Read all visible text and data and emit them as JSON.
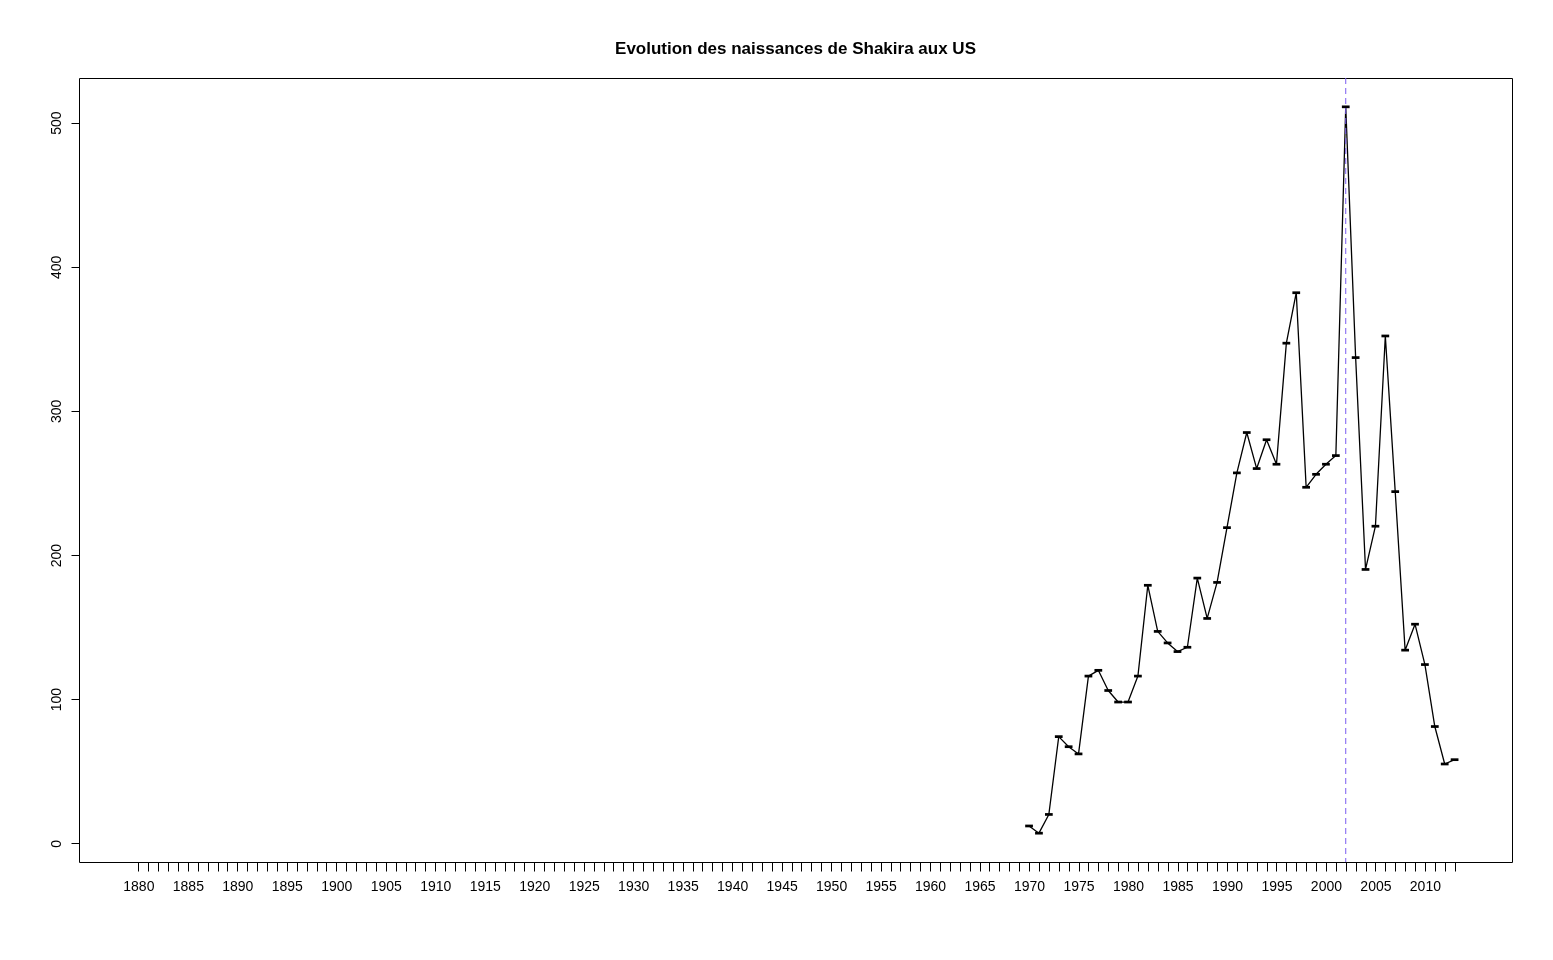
{
  "chart_data": {
    "type": "line",
    "title": "Evolution des naissances de Shakira aux US",
    "x": [
      1970,
      1971,
      1972,
      1973,
      1974,
      1975,
      1976,
      1977,
      1978,
      1979,
      1980,
      1981,
      1982,
      1983,
      1984,
      1985,
      1986,
      1987,
      1988,
      1989,
      1990,
      1991,
      1992,
      1993,
      1994,
      1995,
      1996,
      1997,
      1998,
      1999,
      2000,
      2001,
      2002,
      2003,
      2004,
      2005,
      2006,
      2007,
      2008,
      2009,
      2010,
      2011,
      2012,
      2013
    ],
    "series": [
      {
        "color": "#000000",
        "values": [
          12,
          7,
          20,
          74,
          67,
          62,
          116,
          120,
          106,
          98,
          98,
          116,
          179,
          147,
          139,
          133,
          136,
          184,
          156,
          181,
          219,
          257,
          285,
          260,
          280,
          263,
          347,
          382,
          247,
          256,
          263,
          269,
          511,
          337,
          190,
          220,
          352,
          244,
          134,
          152,
          124,
          81,
          55,
          58
        ]
      }
    ],
    "marker": "square",
    "line_style": "solid",
    "xlim": [
      1874,
      2018.8
    ],
    "ylim": [
      -13,
      531
    ],
    "yticks": [
      0,
      100,
      200,
      300,
      400,
      500
    ],
    "xticks": [
      1880,
      {
        "value": 1881,
        "label": null
      },
      {
        "value": 1882,
        "label": null
      },
      {
        "value": 1883,
        "label": null
      },
      {
        "value": 1884,
        "label": null
      },
      1885,
      {
        "value": 1886,
        "label": null
      },
      {
        "value": 1887,
        "label": null
      },
      {
        "value": 1888,
        "label": null
      },
      {
        "value": 1889,
        "label": null
      },
      1890,
      {
        "value": 1891,
        "label": null
      },
      {
        "value": 1892,
        "label": null
      },
      {
        "value": 1893,
        "label": null
      },
      {
        "value": 1894,
        "label": null
      },
      1895,
      {
        "value": 1896,
        "label": null
      },
      {
        "value": 1897,
        "label": null
      },
      {
        "value": 1898,
        "label": null
      },
      {
        "value": 1899,
        "label": null
      },
      1900,
      {
        "value": 1901,
        "label": null
      },
      {
        "value": 1902,
        "label": null
      },
      {
        "value": 1903,
        "label": null
      },
      {
        "value": 1904,
        "label": null
      },
      1905,
      {
        "value": 1906,
        "label": null
      },
      {
        "value": 1907,
        "label": null
      },
      {
        "value": 1908,
        "label": null
      },
      {
        "value": 1909,
        "label": null
      },
      1910,
      {
        "value": 1911,
        "label": null
      },
      {
        "value": 1912,
        "label": null
      },
      {
        "value": 1913,
        "label": null
      },
      {
        "value": 1914,
        "label": null
      },
      1915,
      {
        "value": 1916,
        "label": null
      },
      {
        "value": 1917,
        "label": null
      },
      {
        "value": 1918,
        "label": null
      },
      {
        "value": 1919,
        "label": null
      },
      1920,
      {
        "value": 1921,
        "label": null
      },
      {
        "value": 1922,
        "label": null
      },
      {
        "value": 1923,
        "label": null
      },
      {
        "value": 1924,
        "label": null
      },
      1925,
      {
        "value": 1926,
        "label": null
      },
      {
        "value": 1927,
        "label": null
      },
      {
        "value": 1928,
        "label": null
      },
      {
        "value": 1929,
        "label": null
      },
      1930,
      {
        "value": 1931,
        "label": null
      },
      {
        "value": 1932,
        "label": null
      },
      {
        "value": 1933,
        "label": null
      },
      {
        "value": 1934,
        "label": null
      },
      1935,
      {
        "value": 1936,
        "label": null
      },
      {
        "value": 1937,
        "label": null
      },
      {
        "value": 1938,
        "label": null
      },
      {
        "value": 1939,
        "label": null
      },
      1940,
      {
        "value": 1941,
        "label": null
      },
      {
        "value": 1942,
        "label": null
      },
      {
        "value": 1943,
        "label": null
      },
      {
        "value": 1944,
        "label": null
      },
      1945,
      {
        "value": 1946,
        "label": null
      },
      {
        "value": 1947,
        "label": null
      },
      {
        "value": 1948,
        "label": null
      },
      {
        "value": 1949,
        "label": null
      },
      1950,
      {
        "value": 1951,
        "label": null
      },
      {
        "value": 1952,
        "label": null
      },
      {
        "value": 1953,
        "label": null
      },
      {
        "value": 1954,
        "label": null
      },
      1955,
      {
        "value": 1956,
        "label": null
      },
      {
        "value": 1957,
        "label": null
      },
      {
        "value": 1958,
        "label": null
      },
      {
        "value": 1959,
        "label": null
      },
      1960,
      {
        "value": 1961,
        "label": null
      },
      {
        "value": 1962,
        "label": null
      },
      {
        "value": 1963,
        "label": null
      },
      {
        "value": 1964,
        "label": null
      },
      1965,
      {
        "value": 1966,
        "label": null
      },
      {
        "value": 1967,
        "label": null
      },
      {
        "value": 1968,
        "label": null
      },
      {
        "value": 1969,
        "label": null
      },
      1970,
      {
        "value": 1971,
        "label": null
      },
      {
        "value": 1972,
        "label": null
      },
      {
        "value": 1973,
        "label": null
      },
      {
        "value": 1974,
        "label": null
      },
      1975,
      {
        "value": 1976,
        "label": null
      },
      {
        "value": 1977,
        "label": null
      },
      {
        "value": 1978,
        "label": null
      },
      {
        "value": 1979,
        "label": null
      },
      1980,
      {
        "value": 1981,
        "label": null
      },
      {
        "value": 1982,
        "label": null
      },
      {
        "value": 1983,
        "label": null
      },
      {
        "value": 1984,
        "label": null
      },
      1985,
      {
        "value": 1986,
        "label": null
      },
      {
        "value": 1987,
        "label": null
      },
      {
        "value": 1988,
        "label": null
      },
      {
        "value": 1989,
        "label": null
      },
      1990,
      {
        "value": 1991,
        "label": null
      },
      {
        "value": 1992,
        "label": null
      },
      {
        "value": 1993,
        "label": null
      },
      {
        "value": 1994,
        "label": null
      },
      1995,
      {
        "value": 1996,
        "label": null
      },
      {
        "value": 1997,
        "label": null
      },
      {
        "value": 1998,
        "label": null
      },
      {
        "value": 1999,
        "label": null
      },
      2000,
      {
        "value": 2001,
        "label": null
      },
      {
        "value": 2002,
        "label": null
      },
      {
        "value": 2003,
        "label": null
      },
      {
        "value": 2004,
        "label": null
      },
      2005,
      {
        "value": 2006,
        "label": null
      },
      {
        "value": 2007,
        "label": null
      },
      {
        "value": 2008,
        "label": null
      },
      {
        "value": 2009,
        "label": null
      },
      2010,
      {
        "value": 2011,
        "label": null
      },
      {
        "value": 2012,
        "label": null
      },
      {
        "value": 2013,
        "label": null
      }
    ],
    "ref_lines": [
      {
        "axis": "x",
        "value": 2002,
        "color": "#7a5cf0",
        "line_style": "dashed"
      }
    ],
    "grid": false
  }
}
